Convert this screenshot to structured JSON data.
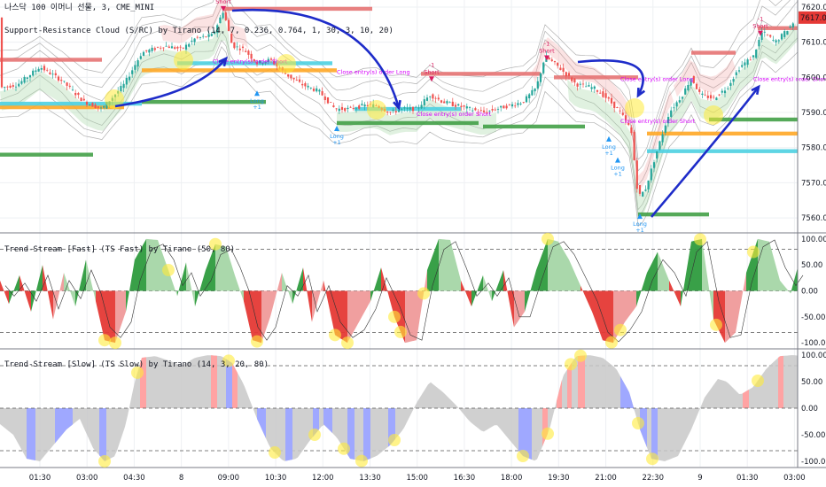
{
  "header": {
    "symbol": "나스닥 100 이머니 선물, 3, CME_MINI",
    "indicator": "Support-Resistance Cloud (S/RC) by Tirano (14, 7, 0.236, 0.764, 1, 30, 3, 10, 20)"
  },
  "price_badge": {
    "value": "7617.00",
    "color": "#e53935"
  },
  "colors": {
    "up": "#26a69a",
    "down": "#ef5350",
    "green_bar": "#43a047",
    "red_bar": "#e57373",
    "orange_bar": "#ffa726",
    "cyan_bar": "#4dd0e1",
    "arrow": "#1e2cc9",
    "highlight": "#ffeb3b",
    "long": "#2196f3",
    "short": "#d81b60",
    "exit": "#d500f9",
    "slow_gray": "#c8c8c8",
    "slow_blue": "#9fa8ff",
    "slow_red": "#ffa3a3"
  },
  "chart_data": [
    {
      "type": "candlestick",
      "title": "나스닥 100 이머니 선물, 3, CME_MINI",
      "ylim": [
        7556,
        7622
      ],
      "yticks": [
        7620,
        7610,
        7600,
        7590,
        7580,
        7570,
        7560
      ],
      "xticks": [
        "01:30",
        "03:00",
        "04:30",
        "8",
        "09:00",
        "10:30",
        "12:00",
        "13:30",
        "15:00",
        "16:30",
        "18:00",
        "19:30",
        "21:00",
        "22:30",
        "9",
        "01:30",
        "03:00"
      ],
      "close_anchors": [
        [
          0,
          7597
        ],
        [
          20,
          7598
        ],
        [
          45,
          7603
        ],
        [
          70,
          7599
        ],
        [
          95,
          7593
        ],
        [
          115,
          7591
        ],
        [
          140,
          7598
        ],
        [
          160,
          7607
        ],
        [
          185,
          7609
        ],
        [
          205,
          7608
        ],
        [
          220,
          7611
        ],
        [
          240,
          7612
        ],
        [
          252,
          7619
        ],
        [
          262,
          7609
        ],
        [
          275,
          7608
        ],
        [
          290,
          7604
        ],
        [
          305,
          7605
        ],
        [
          322,
          7601
        ],
        [
          340,
          7598
        ],
        [
          360,
          7596
        ],
        [
          378,
          7591
        ],
        [
          395,
          7591
        ],
        [
          410,
          7592
        ],
        [
          425,
          7592
        ],
        [
          440,
          7590
        ],
        [
          455,
          7591
        ],
        [
          470,
          7591
        ],
        [
          485,
          7595
        ],
        [
          500,
          7593
        ],
        [
          515,
          7592
        ],
        [
          530,
          7591
        ],
        [
          545,
          7590
        ],
        [
          560,
          7591
        ],
        [
          575,
          7592
        ],
        [
          590,
          7593
        ],
        [
          605,
          7597
        ],
        [
          615,
          7606
        ],
        [
          630,
          7603
        ],
        [
          650,
          7598
        ],
        [
          670,
          7597
        ],
        [
          685,
          7594
        ],
        [
          700,
          7590
        ],
        [
          712,
          7585
        ],
        [
          720,
          7566
        ],
        [
          728,
          7568
        ],
        [
          740,
          7578
        ],
        [
          755,
          7590
        ],
        [
          770,
          7595
        ],
        [
          780,
          7600
        ],
        [
          790,
          7595
        ],
        [
          805,
          7594
        ],
        [
          820,
          7597
        ],
        [
          835,
          7603
        ],
        [
          850,
          7606
        ],
        [
          860,
          7613
        ],
        [
          875,
          7610
        ],
        [
          890,
          7614
        ],
        [
          900,
          7617
        ]
      ],
      "levels": [
        {
          "side": "resistance",
          "color": "red",
          "price": 7619.5,
          "x": [
            252,
            420
          ]
        },
        {
          "side": "resistance",
          "color": "red",
          "price": 7605,
          "x": [
            0,
            115
          ]
        },
        {
          "side": "resistance",
          "color": "red",
          "price": 7601,
          "x": [
            475,
            610
          ]
        },
        {
          "side": "resistance",
          "color": "red",
          "price": 7600,
          "x": [
            625,
            720
          ]
        },
        {
          "side": "resistance",
          "color": "red",
          "price": 7607,
          "x": [
            780,
            830
          ]
        },
        {
          "side": "resistance",
          "color": "red",
          "price": 7614,
          "x": [
            855,
            900
          ]
        },
        {
          "side": "support",
          "color": "green",
          "price": 7593,
          "x": [
            160,
            300
          ]
        },
        {
          "side": "support",
          "color": "green",
          "price": 7587,
          "x": [
            380,
            540
          ]
        },
        {
          "side": "support",
          "color": "green",
          "price": 7586,
          "x": [
            545,
            660
          ]
        },
        {
          "side": "support",
          "color": "green",
          "price": 7561,
          "x": [
            720,
            800
          ]
        },
        {
          "side": "support",
          "color": "green",
          "price": 7588,
          "x": [
            800,
            900
          ]
        },
        {
          "side": "support",
          "color": "green",
          "price": 7578,
          "x": [
            0,
            105
          ]
        },
        {
          "side": "support",
          "color": "orange",
          "price": 7591.5,
          "x": [
            0,
            140
          ]
        },
        {
          "side": "support",
          "color": "orange",
          "price": 7602,
          "x": [
            160,
            380
          ]
        },
        {
          "side": "support",
          "color": "orange",
          "price": 7584,
          "x": [
            730,
            900
          ]
        },
        {
          "side": "support",
          "color": "cyan",
          "price": 7592.5,
          "x": [
            0,
            160
          ]
        },
        {
          "side": "support",
          "color": "cyan",
          "price": 7604,
          "x": [
            200,
            375
          ]
        },
        {
          "side": "support",
          "color": "cyan",
          "price": 7591,
          "x": [
            400,
            520
          ]
        },
        {
          "side": "support",
          "color": "cyan",
          "price": 7579,
          "x": [
            730,
            900
          ]
        }
      ],
      "signals": [
        {
          "label": "Short",
          "kind": "short",
          "x": 252,
          "price": 7618
        },
        {
          "label": "Short",
          "kind": "short",
          "x": 487,
          "price": 7598
        },
        {
          "label": "Short",
          "kind": "short",
          "x": 617,
          "price": 7604
        },
        {
          "label": "Short",
          "kind": "short",
          "x": 858,
          "price": 7611
        },
        {
          "label": "Long",
          "kind": "long",
          "x": 290,
          "price": 7597
        },
        {
          "label": "Long",
          "kind": "long",
          "x": 380,
          "price": 7587
        },
        {
          "label": "Long",
          "kind": "long",
          "x": 687,
          "price": 7584
        },
        {
          "label": "Long",
          "kind": "long",
          "x": 697,
          "price": 7578
        },
        {
          "label": "Long",
          "kind": "long",
          "x": 722,
          "price": 7562
        },
        {
          "label": "Close entry(s) order Short",
          "kind": "exit",
          "x": 240,
          "price": 7604
        },
        {
          "label": "Close entry(s) order Long",
          "kind": "exit",
          "x": 380,
          "price": 7601
        },
        {
          "label": "Close entry(s) order Short",
          "kind": "exit",
          "x": 470,
          "price": 7589
        },
        {
          "label": "Close entry(s) order Short",
          "kind": "exit",
          "x": 700,
          "price": 7587
        },
        {
          "label": "Close entry(s) order Long",
          "kind": "exit",
          "x": 700,
          "price": 7599
        },
        {
          "label": "Close entry(s) order Short",
          "kind": "exit",
          "x": 850,
          "price": 7599
        }
      ],
      "annotations": {
        "plus": "+1",
        "minus": "-1"
      }
    },
    {
      "type": "area",
      "title": "Trend-Stream [Fast] (TS Fast) by Tirano (50, 80)",
      "ylim": [
        -110,
        110
      ],
      "yticks": [
        100,
        50,
        0,
        -50,
        -100
      ],
      "yticklabels": [
        "100.00",
        "50.00",
        "0.00",
        "-50.00",
        "-100.00"
      ],
      "dashed_levels": [
        80,
        0,
        -80
      ],
      "x": [
        0,
        10,
        22,
        35,
        48,
        60,
        72,
        85,
        97,
        108,
        118,
        130,
        142,
        152,
        165,
        178,
        190,
        200,
        210,
        220,
        232,
        243,
        255,
        265,
        275,
        285,
        295,
        305,
        318,
        330,
        342,
        352,
        365,
        378,
        392,
        405,
        418,
        430,
        445,
        457,
        470,
        482,
        495,
        508,
        520,
        532,
        545,
        555,
        568,
        580,
        592,
        605,
        618,
        630,
        642,
        655,
        668,
        680,
        692,
        705,
        718,
        730,
        742,
        755,
        768,
        780,
        792,
        805,
        818,
        830,
        842,
        855,
        868,
        880,
        892,
        900
      ],
      "values": [
        20,
        -25,
        30,
        -40,
        50,
        -55,
        35,
        -30,
        60,
        -20,
        -95,
        -100,
        -40,
        60,
        100,
        98,
        40,
        -10,
        55,
        -30,
        40,
        90,
        85,
        30,
        -20,
        -95,
        -100,
        -50,
        35,
        -25,
        45,
        -60,
        20,
        -85,
        -100,
        -60,
        -20,
        45,
        -50,
        -100,
        -95,
        40,
        100,
        98,
        20,
        -30,
        30,
        -20,
        40,
        -70,
        -40,
        40,
        100,
        95,
        60,
        10,
        -40,
        -95,
        -100,
        -60,
        -30,
        35,
        75,
        20,
        -30,
        95,
        100,
        -55,
        -100,
        -80,
        35,
        100,
        95,
        20,
        -5,
        45
      ],
      "signal_line": [
        10,
        -10,
        15,
        -20,
        30,
        -35,
        20,
        -15,
        40,
        -5,
        -70,
        -90,
        -60,
        20,
        80,
        90,
        60,
        10,
        35,
        -10,
        20,
        70,
        80,
        45,
        0,
        -70,
        -95,
        -70,
        10,
        -10,
        30,
        -40,
        10,
        -60,
        -90,
        -75,
        -35,
        25,
        -30,
        -85,
        -95,
        10,
        80,
        95,
        45,
        -10,
        15,
        -10,
        25,
        -50,
        -50,
        20,
        85,
        95,
        70,
        25,
        -20,
        -80,
        -98,
        -75,
        -40,
        20,
        60,
        35,
        -10,
        75,
        95,
        -20,
        -90,
        -85,
        15,
        85,
        98,
        45,
        10,
        30
      ],
      "highlights": [
        118,
        130,
        190,
        243,
        290,
        378,
        392,
        445,
        452,
        478,
        618,
        690,
        700,
        790,
        808,
        850
      ]
    },
    {
      "type": "area",
      "title": "Trend-Stream [Slow] (TS Slow) by Tirano (14, 3, 20, 80)",
      "ylim": [
        -110,
        110
      ],
      "yticks": [
        100,
        50,
        0,
        -50,
        -100
      ],
      "yticklabels": [
        "100.00",
        "50.00",
        "0.00",
        "-50.00",
        "-100.00"
      ],
      "dashed_levels": [
        80,
        -80
      ],
      "x": [
        0,
        15,
        30,
        45,
        60,
        75,
        90,
        105,
        118,
        130,
        142,
        152,
        160,
        175,
        190,
        205,
        220,
        235,
        250,
        262,
        275,
        290,
        305,
        320,
        335,
        350,
        365,
        380,
        395,
        410,
        425,
        440,
        455,
        470,
        485,
        500,
        515,
        530,
        545,
        560,
        575,
        590,
        605,
        620,
        635,
        650,
        665,
        680,
        695,
        710,
        722,
        735,
        750,
        765,
        780,
        795,
        810,
        820,
        835,
        850,
        865,
        880,
        895,
        905
      ],
      "values": [
        -30,
        -50,
        -95,
        -100,
        -70,
        -40,
        -20,
        -75,
        -100,
        -90,
        -30,
        50,
        95,
        98,
        90,
        80,
        95,
        100,
        98,
        85,
        45,
        -20,
        -75,
        -100,
        -95,
        -60,
        -30,
        -55,
        -95,
        -100,
        -90,
        -70,
        -40,
        10,
        50,
        30,
        5,
        -25,
        -45,
        -30,
        -60,
        -90,
        -100,
        -40,
        60,
        98,
        100,
        95,
        75,
        30,
        -40,
        -95,
        -100,
        -90,
        -40,
        20,
        55,
        50,
        25,
        40,
        75,
        98,
        100,
        98
      ],
      "blue_spans": [
        [
          30,
          40
        ],
        [
          62,
          82
        ],
        [
          112,
          120
        ],
        [
          255,
          265
        ],
        [
          290,
          300
        ],
        [
          322,
          330
        ],
        [
          353,
          360
        ],
        [
          365,
          375
        ],
        [
          392,
          400
        ],
        [
          410,
          418
        ],
        [
          438,
          446
        ],
        [
          585,
          600
        ],
        [
          700,
          716
        ],
        [
          722,
          730
        ],
        [
          735,
          742
        ]
      ],
      "red_spans": [
        [
          158,
          165
        ],
        [
          238,
          245
        ],
        [
          262,
          268
        ],
        [
          612,
          618
        ],
        [
          628,
          634
        ],
        [
          640,
          645
        ],
        [
          652,
          660
        ],
        [
          838,
          845
        ],
        [
          878,
          884
        ]
      ],
      "highlights": [
        118,
        155,
        258,
        310,
        355,
        388,
        408,
        445,
        590,
        618,
        644,
        655,
        720,
        736,
        855
      ]
    }
  ],
  "arrows_desc": [
    {
      "from": [
        130,
        120
      ],
      "to": [
        255,
        66
      ]
    },
    {
      "from": [
        262,
        12
      ],
      "to": [
        450,
        122
      ]
    },
    {
      "from": [
        652,
        70
      ],
      "to": [
        720,
        108
      ]
    },
    {
      "from": [
        735,
        245
      ],
      "to": [
        856,
        98
      ]
    }
  ]
}
